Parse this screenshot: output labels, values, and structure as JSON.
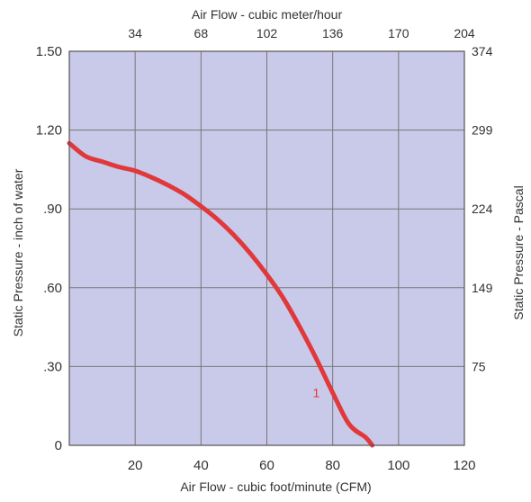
{
  "colors": {
    "plot_background": "#c9c9ea",
    "grid": "#777777",
    "curve": "#e0383b",
    "series_label": "#e0383b",
    "text": "#333333"
  },
  "chart_data": {
    "type": "line",
    "grid": true,
    "bottom_axis": {
      "label": "Air Flow - cubic foot/minute (CFM)",
      "range": [
        0,
        120
      ],
      "ticks": [
        20,
        40,
        60,
        80,
        100,
        120
      ],
      "tick_labels": [
        "20",
        "40",
        "60",
        "80",
        "100",
        "120"
      ]
    },
    "top_axis": {
      "label": "Air Flow - cubic meter/hour",
      "tick_labels": [
        "34",
        "68",
        "102",
        "136",
        "170",
        "204"
      ]
    },
    "left_axis": {
      "label": "Static Pressure - inch of water",
      "range": [
        0,
        1.5
      ],
      "ticks": [
        0,
        0.3,
        0.6,
        0.9,
        1.2,
        1.5
      ],
      "tick_labels": [
        "0",
        ".30",
        ".60",
        ".90",
        "1.20",
        "1.50"
      ]
    },
    "right_axis": {
      "label": "Static Pressure - Pascal",
      "tick_labels": [
        "75",
        "149",
        "224",
        "299",
        "374"
      ]
    },
    "series": [
      {
        "name": "1",
        "x": [
          0,
          5,
          10,
          15,
          20,
          25,
          30,
          35,
          40,
          45,
          50,
          55,
          60,
          65,
          70,
          75,
          80,
          85,
          90,
          92
        ],
        "y": [
          1.15,
          1.1,
          1.08,
          1.06,
          1.045,
          1.02,
          0.99,
          0.955,
          0.91,
          0.86,
          0.8,
          0.73,
          0.65,
          0.56,
          0.45,
          0.33,
          0.2,
          0.08,
          0.03,
          0.0
        ],
        "label_at": [
          75,
          0.2
        ]
      }
    ]
  }
}
